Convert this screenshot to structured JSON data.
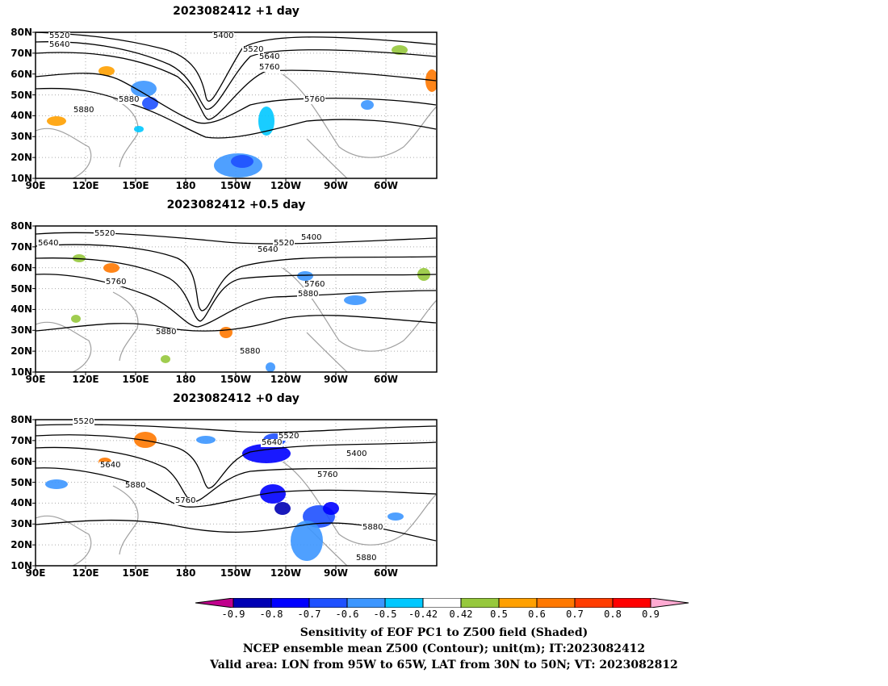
{
  "panels": [
    {
      "title": "2023082412 +1 day",
      "contour_labels": [
        "5520",
        "5400",
        "5640",
        "5520",
        "5640",
        "5760",
        "5880",
        "5760",
        "5880"
      ]
    },
    {
      "title": "2023082412 +0.5 day",
      "contour_labels": [
        "5520",
        "5640",
        "5400",
        "5520",
        "5640",
        "5760",
        "5760",
        "5880",
        "5880",
        "5880"
      ]
    },
    {
      "title": "2023082412 +0 day",
      "contour_labels": [
        "5520",
        "5640",
        "5520",
        "5640",
        "5400",
        "5880",
        "5760",
        "5760",
        "5880",
        "5880"
      ]
    }
  ],
  "axes": {
    "lat_labels": [
      "80N",
      "70N",
      "60N",
      "50N",
      "40N",
      "30N",
      "20N",
      "10N"
    ],
    "lon_labels": [
      "90E",
      "120E",
      "150E",
      "180",
      "150W",
      "120W",
      "90W",
      "60W"
    ]
  },
  "colorbar": {
    "colors": [
      "#c0008c",
      "#0000b4",
      "#0000ff",
      "#1e50ff",
      "#3c96ff",
      "#00c8ff",
      "#ffffff",
      "#96c83c",
      "#ffa000",
      "#ff7800",
      "#ff3c00",
      "#ff0000",
      "#ffaad2"
    ],
    "ticks": [
      "-0.9",
      "-0.8",
      "-0.7",
      "-0.6",
      "-0.5",
      "-0.42",
      "0.42",
      "0.5",
      "0.6",
      "0.7",
      "0.8",
      "0.9"
    ]
  },
  "captions": [
    "Sensitivity of EOF PC1 to Z500 field (Shaded)",
    "NCEP ensemble mean Z500 (Contour); unit(m); IT:2023082412",
    "Valid area: LON from 95W to 65W, LAT from 30N to 50N; VT: 2023082812"
  ]
}
